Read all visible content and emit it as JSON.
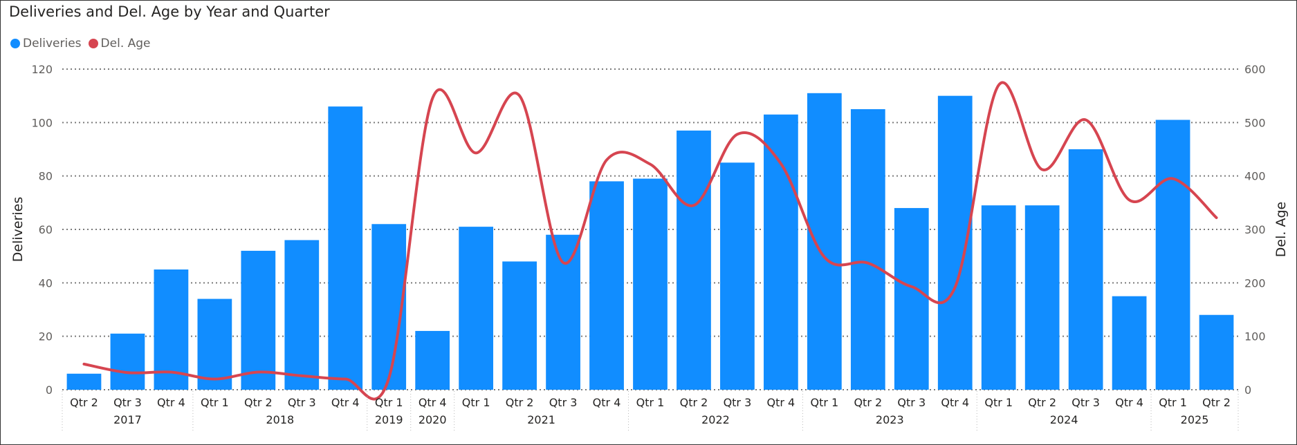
{
  "chart_data": {
    "type": "bar+line",
    "title": "Deliveries and Del. Age by Year and Quarter",
    "legend": {
      "position": "top-left",
      "entries": [
        {
          "name": "Deliveries",
          "color": "#118dff"
        },
        {
          "name": "Del. Age",
          "color": "#d64550"
        }
      ]
    },
    "y_left": {
      "label": "Deliveries",
      "min": 0,
      "max": 120,
      "ticks": [
        0,
        20,
        40,
        60,
        80,
        100,
        120
      ]
    },
    "y_right": {
      "label": "Del. Age",
      "min": 0,
      "max": 600,
      "ticks": [
        0,
        100,
        200,
        300,
        400,
        500,
        600
      ]
    },
    "grid": true,
    "categories": [
      {
        "quarter": "Qtr 2",
        "year": "2017"
      },
      {
        "quarter": "Qtr 3",
        "year": "2017"
      },
      {
        "quarter": "Qtr 4",
        "year": "2017"
      },
      {
        "quarter": "Qtr 1",
        "year": "2018"
      },
      {
        "quarter": "Qtr 2",
        "year": "2018"
      },
      {
        "quarter": "Qtr 3",
        "year": "2018"
      },
      {
        "quarter": "Qtr 4",
        "year": "2018"
      },
      {
        "quarter": "Qtr 1",
        "year": "2019"
      },
      {
        "quarter": "Qtr 4",
        "year": "2020"
      },
      {
        "quarter": "Qtr 1",
        "year": "2021"
      },
      {
        "quarter": "Qtr 2",
        "year": "2021"
      },
      {
        "quarter": "Qtr 3",
        "year": "2021"
      },
      {
        "quarter": "Qtr 4",
        "year": "2021"
      },
      {
        "quarter": "Qtr 1",
        "year": "2022"
      },
      {
        "quarter": "Qtr 2",
        "year": "2022"
      },
      {
        "quarter": "Qtr 3",
        "year": "2022"
      },
      {
        "quarter": "Qtr 4",
        "year": "2022"
      },
      {
        "quarter": "Qtr 1",
        "year": "2023"
      },
      {
        "quarter": "Qtr 2",
        "year": "2023"
      },
      {
        "quarter": "Qtr 3",
        "year": "2023"
      },
      {
        "quarter": "Qtr 4",
        "year": "2023"
      },
      {
        "quarter": "Qtr 1",
        "year": "2024"
      },
      {
        "quarter": "Qtr 2",
        "year": "2024"
      },
      {
        "quarter": "Qtr 3",
        "year": "2024"
      },
      {
        "quarter": "Qtr 4",
        "year": "2024"
      },
      {
        "quarter": "Qtr 1",
        "year": "2025"
      },
      {
        "quarter": "Qtr 2",
        "year": "2025"
      }
    ],
    "series": [
      {
        "name": "Deliveries",
        "type": "bar",
        "axis": "left",
        "color": "#118dff",
        "values": [
          6,
          21,
          45,
          34,
          52,
          56,
          106,
          62,
          22,
          61,
          48,
          58,
          78,
          79,
          97,
          85,
          103,
          111,
          105,
          68,
          110,
          69,
          69,
          90,
          35,
          101,
          28
        ]
      },
      {
        "name": "Del. Age",
        "type": "line",
        "axis": "right",
        "color": "#d64550",
        "values": [
          48,
          32,
          33,
          20,
          33,
          26,
          20,
          22,
          545,
          443,
          550,
          238,
          430,
          422,
          345,
          478,
          423,
          248,
          237,
          193,
          192,
          570,
          412,
          505,
          355,
          395,
          322
        ]
      }
    ]
  }
}
